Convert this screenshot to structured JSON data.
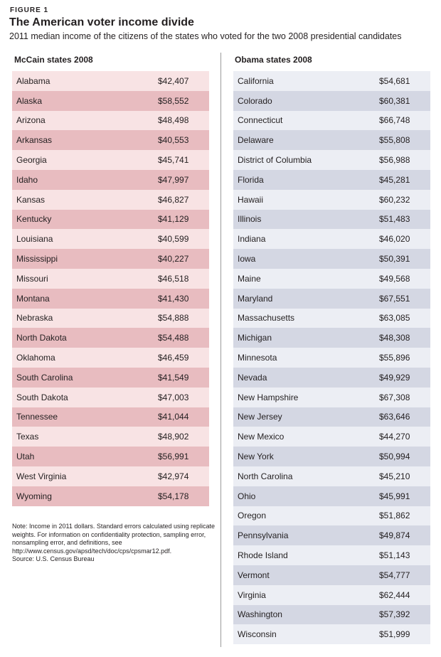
{
  "figure_label": "FIGURE 1",
  "title": "The American voter income divide",
  "subtitle": "2011 median income of the citizens of the states who voted for the two 2008 presidential candidates",
  "note": "Note: Income in 2011 dollars. Standard errors calculated using replicate weights. For information on confidentiality protection, sampling error, nonsampling error, and definitions, see http://www.census.gov/apsd/tech/doc/cps/cpsmar12.pdf.",
  "source": "Source: U.S. Census Bureau",
  "colors": {
    "mccain_light": "#f8e3e4",
    "mccain_dark": "#e8bcc0",
    "obama_light": "#eceef4",
    "obama_dark": "#d4d7e3"
  },
  "chart_data": [
    {
      "type": "table",
      "title": "McCain states 2008",
      "rows": [
        [
          "Alabama",
          "$42,407"
        ],
        [
          "Alaska",
          "$58,552"
        ],
        [
          "Arizona",
          "$48,498"
        ],
        [
          "Arkansas",
          "$40,553"
        ],
        [
          "Georgia",
          "$45,741"
        ],
        [
          "Idaho",
          "$47,997"
        ],
        [
          "Kansas",
          "$46,827"
        ],
        [
          "Kentucky",
          "$41,129"
        ],
        [
          "Louisiana",
          "$40,599"
        ],
        [
          "Mississippi",
          "$40,227"
        ],
        [
          "Missouri",
          "$46,518"
        ],
        [
          "Montana",
          "$41,430"
        ],
        [
          "Nebraska",
          "$54,888"
        ],
        [
          "North Dakota",
          "$54,488"
        ],
        [
          "Oklahoma",
          "$46,459"
        ],
        [
          "South Carolina",
          "$41,549"
        ],
        [
          "South Dakota",
          "$47,003"
        ],
        [
          "Tennessee",
          "$41,044"
        ],
        [
          "Texas",
          "$48,902"
        ],
        [
          "Utah",
          "$56,991"
        ],
        [
          "West Virginia",
          "$42,974"
        ],
        [
          "Wyoming",
          "$54,178"
        ]
      ]
    },
    {
      "type": "table",
      "title": "Obama states 2008",
      "rows": [
        [
          "California",
          "$54,681"
        ],
        [
          "Colorado",
          "$60,381"
        ],
        [
          "Connecticut",
          "$66,748"
        ],
        [
          "Delaware",
          "$55,808"
        ],
        [
          "District of Columbia",
          "$56,988"
        ],
        [
          "Florida",
          "$45,281"
        ],
        [
          "Hawaii",
          "$60,232"
        ],
        [
          "Illinois",
          "$51,483"
        ],
        [
          "Indiana",
          "$46,020"
        ],
        [
          "Iowa",
          "$50,391"
        ],
        [
          "Maine",
          "$49,568"
        ],
        [
          "Maryland",
          "$67,551"
        ],
        [
          "Massachusetts",
          "$63,085"
        ],
        [
          "Michigan",
          "$48,308"
        ],
        [
          "Minnesota",
          "$55,896"
        ],
        [
          "Nevada",
          "$49,929"
        ],
        [
          "New Hampshire",
          "$67,308"
        ],
        [
          "New Jersey",
          "$63,646"
        ],
        [
          "New Mexico",
          "$44,270"
        ],
        [
          "New York",
          "$50,994"
        ],
        [
          "North Carolina",
          "$45,210"
        ],
        [
          "Ohio",
          "$45,991"
        ],
        [
          "Oregon",
          "$51,862"
        ],
        [
          "Pennsylvania",
          "$49,874"
        ],
        [
          "Rhode Island",
          "$51,143"
        ],
        [
          "Vermont",
          "$54,777"
        ],
        [
          "Virginia",
          "$62,444"
        ],
        [
          "Washington",
          "$57,392"
        ],
        [
          "Wisconsin",
          "$51,999"
        ]
      ]
    }
  ]
}
